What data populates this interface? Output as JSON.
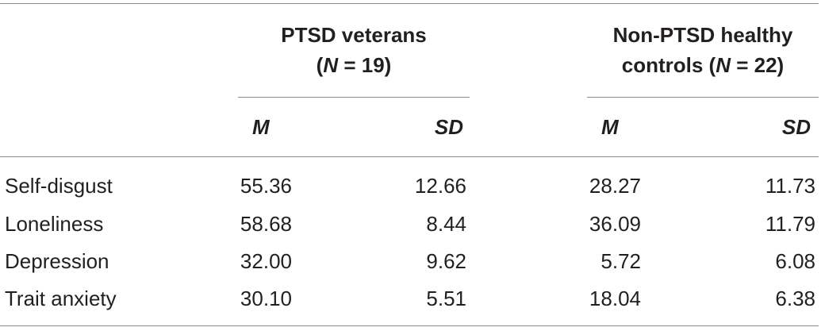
{
  "table": {
    "groups": [
      {
        "line1": "PTSD veterans",
        "line2_prefix": "(",
        "line2_n": "N",
        "line2_suffix": " = 19)"
      },
      {
        "line1": "Non-PTSD healthy",
        "line2_prefix": "controls (",
        "line2_n": "N",
        "line2_suffix": " = 22)"
      }
    ],
    "subheaders": [
      "M",
      "SD",
      "M",
      "SD"
    ],
    "rows": [
      {
        "label": "Self-disgust",
        "values": [
          "55.36",
          "12.66",
          "28.27",
          "11.73"
        ]
      },
      {
        "label": "Loneliness",
        "values": [
          "58.68",
          "8.44",
          "36.09",
          "11.79"
        ]
      },
      {
        "label": "Depression",
        "values": [
          "32.00",
          "9.62",
          "5.72",
          "6.08"
        ]
      },
      {
        "label": "Trait anxiety",
        "values": [
          "30.10",
          "5.51",
          "18.04",
          "6.38"
        ]
      }
    ]
  }
}
